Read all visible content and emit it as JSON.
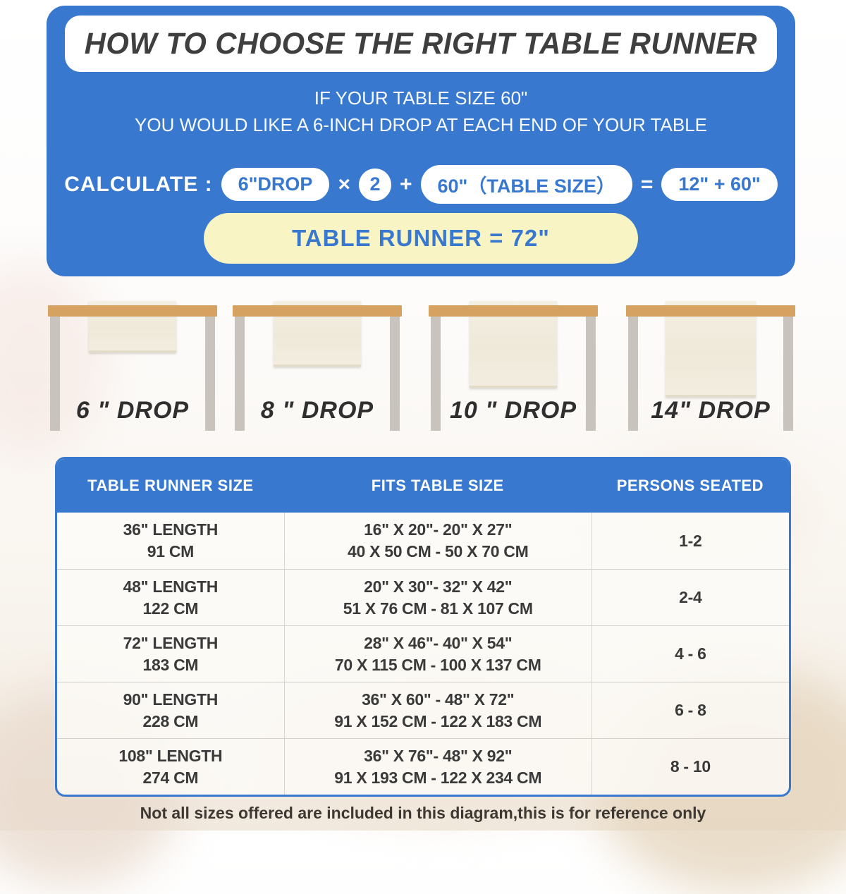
{
  "colors": {
    "blue": "#3878CF",
    "yellow_pill": "#F8F4C3",
    "tabletop_tan": "#D6A261",
    "leg_gray": "#C8C3BD",
    "runner_cream": "#F1EBDC",
    "title_text": "#3F3F3F",
    "body_text": "#3A3A3A"
  },
  "header": {
    "title": "HOW TO CHOOSE THE RIGHT TABLE RUNNER",
    "subtitle_line1": "IF YOUR TABLE SIZE 60\"",
    "subtitle_line2": "YOU WOULD LIKE A 6-INCH DROP AT EACH END OF YOUR TABLE"
  },
  "calculation": {
    "label": "CALCULATE :",
    "drop_pill": "6\"DROP",
    "times": "×",
    "multiplier": "2",
    "plus": "+",
    "table_size_pill": "60\"（TABLE SIZE）",
    "equals": "=",
    "sum_pill": "12\" + 60\"",
    "result": "TABLE RUNNER = 72\""
  },
  "drops": [
    {
      "label": "6 \" DROP",
      "inches": 6
    },
    {
      "label": "8 \" DROP",
      "inches": 8
    },
    {
      "label": "10 \" DROP",
      "inches": 10
    },
    {
      "label": "14\" DROP",
      "inches": 14
    }
  ],
  "size_table": {
    "columns": [
      "TABLE RUNNER SIZE",
      "FITS TABLE SIZE",
      "PERSONS SEATED"
    ],
    "rows": [
      {
        "size_in": "36\" LENGTH",
        "size_cm": "91 CM",
        "fits_in": "16\" X 20\"- 20\" X 27\"",
        "fits_cm": "40 X 50 CM - 50 X 70 CM",
        "persons": "1-2"
      },
      {
        "size_in": "48\" LENGTH",
        "size_cm": "122 CM",
        "fits_in": "20\" X 30\"- 32\" X 42\"",
        "fits_cm": "51 X 76 CM - 81 X 107 CM",
        "persons": "2-4"
      },
      {
        "size_in": "72\" LENGTH",
        "size_cm": "183 CM",
        "fits_in": "28\" X 46\"- 40\" X 54\"",
        "fits_cm": "70 X 115 CM - 100 X 137 CM",
        "persons": "4 - 6"
      },
      {
        "size_in": "90\" LENGTH",
        "size_cm": "228 CM",
        "fits_in": "36\" X 60\" - 48\" X 72\"",
        "fits_cm": "91 X 152 CM - 122 X 183 CM",
        "persons": "6 - 8"
      },
      {
        "size_in": "108\" LENGTH",
        "size_cm": "274 CM",
        "fits_in": "36\" X 76\"- 48\" X 92\"",
        "fits_cm": "91 X 193 CM - 122 X 234 CM",
        "persons": "8 - 10"
      }
    ]
  },
  "footnote": "Not all sizes offered are included in this diagram,this is for reference only"
}
